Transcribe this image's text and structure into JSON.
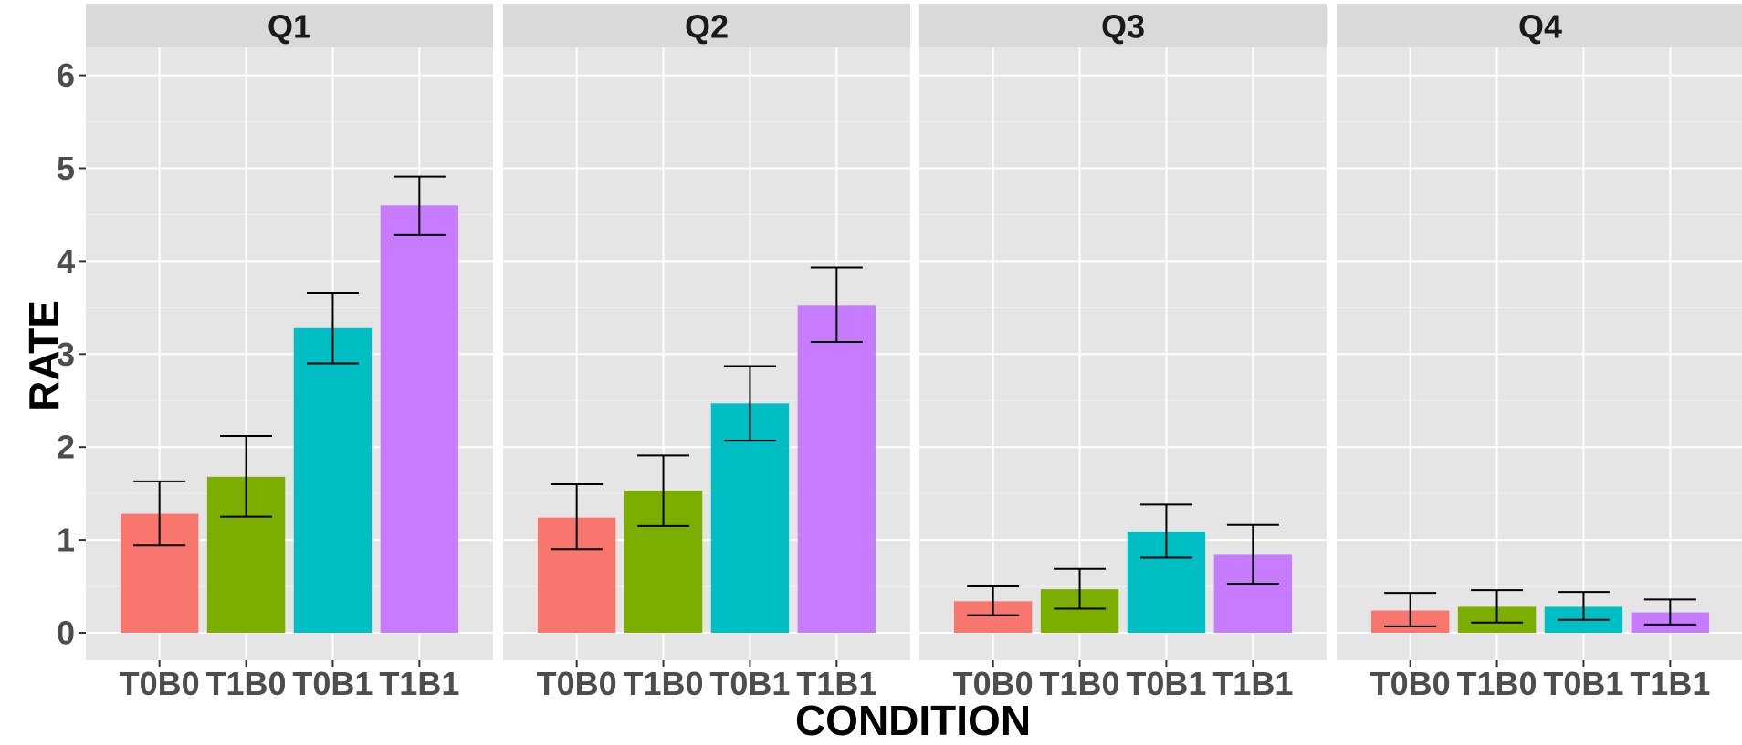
{
  "chart_data": {
    "type": "bar",
    "xlabel": "CONDITION",
    "ylabel": "RATE",
    "ylim": [
      -0.3,
      6.8
    ],
    "yticks": [
      0,
      1,
      2,
      3,
      4,
      5,
      6
    ],
    "categories": [
      "T0B0",
      "T1B0",
      "T0B1",
      "T1B1"
    ],
    "colors": {
      "T0B0": "#F8766D",
      "T1B0": "#7CAE00",
      "T0B1": "#00BFC4",
      "T1B1": "#C77CFF"
    },
    "panel_background": "#E5E5E5",
    "strip_background": "#D9D9D9",
    "grid": true,
    "legend": "none",
    "panels": [
      {
        "facet": "Q1",
        "values": [
          1.28,
          1.68,
          3.28,
          4.6
        ],
        "error_low": [
          0.94,
          1.25,
          2.9,
          4.28
        ],
        "error_high": [
          1.63,
          2.12,
          3.66,
          4.91
        ]
      },
      {
        "facet": "Q2",
        "values": [
          1.24,
          1.53,
          2.47,
          3.52
        ],
        "error_low": [
          0.9,
          1.15,
          2.07,
          3.13
        ],
        "error_high": [
          1.6,
          1.91,
          2.87,
          3.93
        ]
      },
      {
        "facet": "Q3",
        "values": [
          0.34,
          0.47,
          1.09,
          0.84
        ],
        "error_low": [
          0.19,
          0.26,
          0.81,
          0.53
        ],
        "error_high": [
          0.5,
          0.69,
          1.38,
          1.16
        ]
      },
      {
        "facet": "Q4",
        "values": [
          0.24,
          0.28,
          0.28,
          0.22
        ],
        "error_low": [
          0.07,
          0.11,
          0.14,
          0.09
        ],
        "error_high": [
          0.43,
          0.46,
          0.44,
          0.36
        ]
      }
    ]
  }
}
